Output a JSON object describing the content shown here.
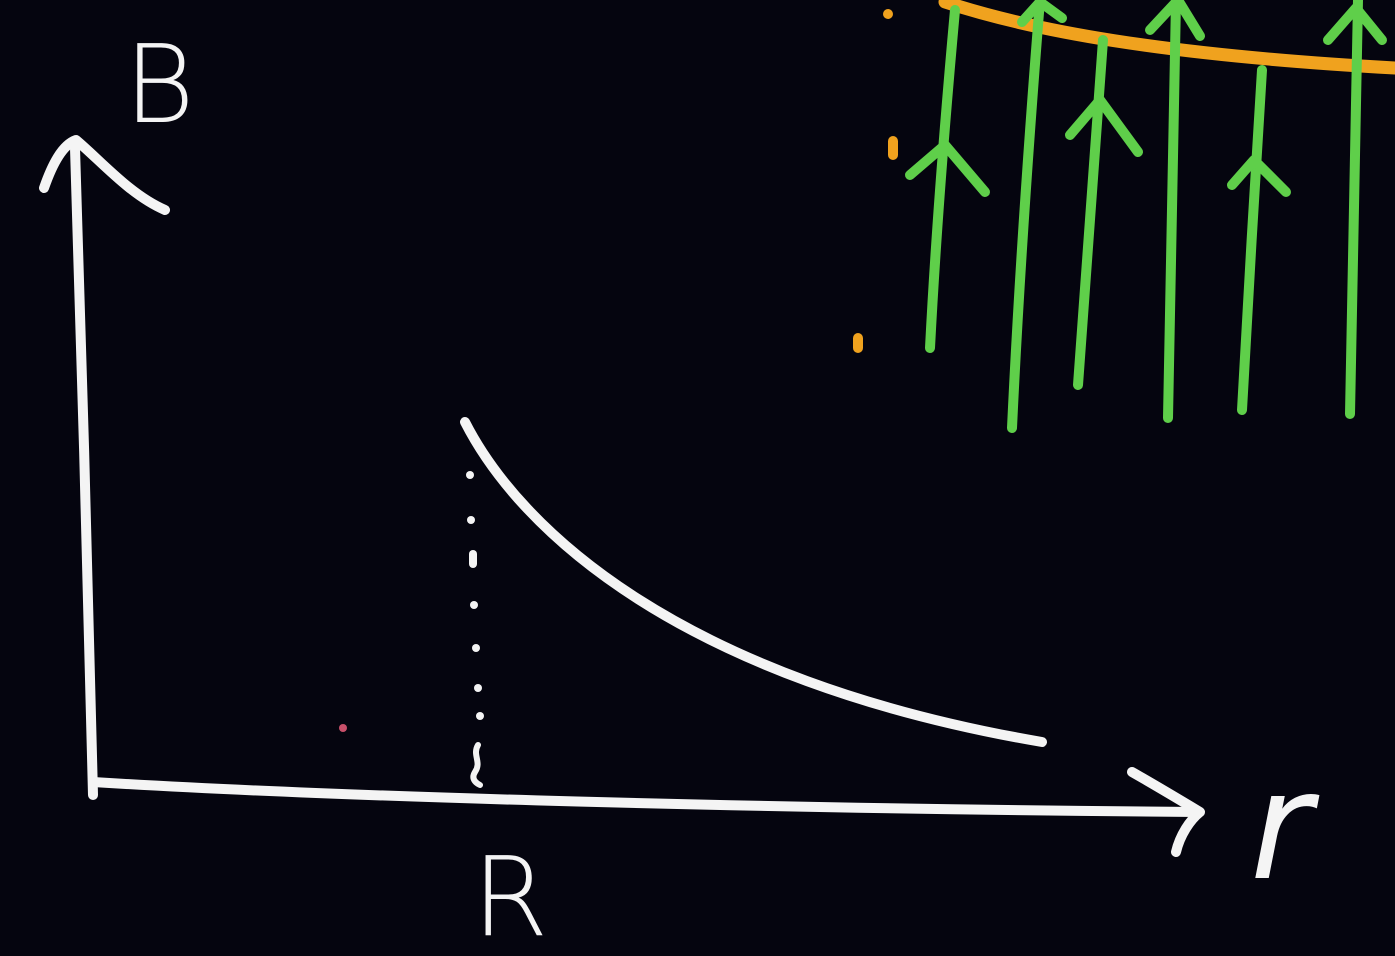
{
  "axes": {
    "y_label": "B",
    "x_label": "r",
    "x_marker_label": "R"
  },
  "curve": {
    "description_shape": "decreasing-from-R"
  },
  "field_lines": {
    "count": 6,
    "direction": "up"
  },
  "colors": {
    "background": "#05050f",
    "ink": "#f4f4f4",
    "field": "#5fcf4a",
    "boundary": "#f0a21e"
  }
}
